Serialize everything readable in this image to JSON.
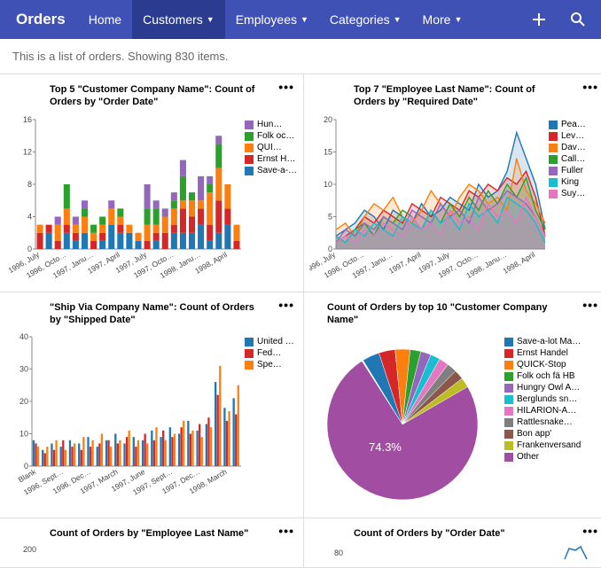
{
  "nav": {
    "brand": "Orders",
    "items": [
      {
        "label": "Home",
        "dropdown": false,
        "active": false
      },
      {
        "label": "Customers",
        "dropdown": true,
        "active": true
      },
      {
        "label": "Employees",
        "dropdown": true,
        "active": false
      },
      {
        "label": "Categories",
        "dropdown": true,
        "active": false
      },
      {
        "label": "More",
        "dropdown": true,
        "active": false
      }
    ]
  },
  "subtitle": "This is a list of orders. Showing 830 items.",
  "colors": {
    "blue": "#1f77b4",
    "red": "#d62728",
    "orange": "#ff7f0e",
    "green": "#2ca02c",
    "purple": "#9467bd",
    "teal": "#17becf",
    "pink": "#e377c2",
    "darkred": "#8c564b",
    "big_purple": "#a14da1",
    "axis": "#888"
  },
  "chart1": {
    "title": "Top 5 \"Customer Company Name\": Count of Orders by \"Order Date\"",
    "ylim": [
      0,
      16
    ],
    "ytick": 4,
    "x_labels": [
      "1996, July",
      "1996, Octo…",
      "1997, Janu…",
      "1997, April",
      "1997, July",
      "1997, Octo…",
      "1998, Janu…",
      "1998, April"
    ],
    "series": [
      {
        "name": "Save-a-lot Mar…",
        "color": "#1f77b4"
      },
      {
        "name": "Ernst Han…",
        "color": "#d62728"
      },
      {
        "name": "QUI…",
        "color": "#ff7f0e"
      },
      {
        "name": "Folk och fä HB",
        "color": "#2ca02c"
      },
      {
        "name": "Hun…",
        "color": "#9467bd"
      }
    ],
    "data": [
      [
        0,
        2,
        1,
        0,
        0
      ],
      [
        2,
        1,
        0,
        0,
        0
      ],
      [
        0,
        1,
        2,
        0,
        1
      ],
      [
        2,
        1,
        2,
        3,
        0
      ],
      [
        1,
        1,
        1,
        0,
        1
      ],
      [
        2,
        0,
        2,
        1,
        1
      ],
      [
        0,
        1,
        1,
        1,
        0
      ],
      [
        1,
        1,
        1,
        1,
        0
      ],
      [
        3,
        0,
        2,
        0,
        1
      ],
      [
        2,
        1,
        1,
        1,
        0
      ],
      [
        2,
        0,
        1,
        0,
        0
      ],
      [
        1,
        0,
        1,
        0,
        0
      ],
      [
        0,
        1,
        2,
        2,
        3
      ],
      [
        1,
        1,
        1,
        2,
        1
      ],
      [
        0,
        2,
        2,
        0,
        1
      ],
      [
        2,
        1,
        2,
        1,
        1
      ],
      [
        2,
        3,
        1,
        3,
        2
      ],
      [
        2,
        2,
        2,
        1,
        0
      ],
      [
        3,
        2,
        1,
        0,
        3
      ],
      [
        1,
        2,
        4,
        1,
        1
      ],
      [
        2,
        4,
        4,
        3,
        1
      ],
      [
        3,
        2,
        3,
        0,
        0
      ],
      [
        0,
        1,
        2,
        0,
        0
      ]
    ]
  },
  "chart2": {
    "title": "Top 7 \"Employee Last Name\": Count of Orders by \"Required Date\"",
    "ylim": [
      0,
      20
    ],
    "ytick": 5,
    "x_labels": [
      "1996, July",
      "1996, Octo…",
      "1997, Janu…",
      "1997, April",
      "1997, July",
      "1997, Octo…",
      "1998, Janu…",
      "1998, April"
    ],
    "series": [
      {
        "name": "Pea…",
        "color": "#1f77b4"
      },
      {
        "name": "Lev…",
        "color": "#d62728"
      },
      {
        "name": "Dav…",
        "color": "#ff7f0e"
      },
      {
        "name": "Call…",
        "color": "#2ca02c"
      },
      {
        "name": "Fuller",
        "color": "#9467bd"
      },
      {
        "name": "King",
        "color": "#17becf"
      },
      {
        "name": "Suy…",
        "color": "#e377c2"
      }
    ],
    "lines": {
      "Pea…": [
        2,
        3,
        4,
        6,
        5,
        3,
        6,
        5,
        4,
        7,
        5,
        6,
        8,
        7,
        6,
        10,
        8,
        9,
        12,
        18,
        14,
        10,
        3
      ],
      "Lev…": [
        1,
        2,
        3,
        5,
        4,
        6,
        5,
        4,
        7,
        6,
        5,
        8,
        7,
        6,
        9,
        8,
        10,
        9,
        11,
        10,
        12,
        8,
        2
      ],
      "Dav…": [
        3,
        4,
        2,
        5,
        7,
        6,
        8,
        5,
        4,
        6,
        9,
        7,
        5,
        8,
        10,
        9,
        7,
        8,
        6,
        14,
        9,
        7,
        4
      ],
      "Call…": [
        2,
        1,
        3,
        4,
        2,
        5,
        4,
        6,
        5,
        3,
        6,
        4,
        7,
        5,
        8,
        6,
        9,
        7,
        10,
        8,
        11,
        6,
        3
      ],
      "Fuller": [
        1,
        3,
        2,
        4,
        3,
        5,
        4,
        3,
        6,
        5,
        4,
        7,
        5,
        6,
        4,
        8,
        6,
        7,
        9,
        8,
        7,
        5,
        2
      ],
      "King": [
        2,
        1,
        3,
        2,
        4,
        3,
        2,
        5,
        4,
        3,
        6,
        4,
        5,
        3,
        7,
        5,
        6,
        4,
        8,
        7,
        6,
        4,
        1
      ],
      "Suy…": [
        1,
        2,
        1,
        3,
        2,
        4,
        3,
        2,
        5,
        3,
        4,
        2,
        6,
        4,
        5,
        3,
        7,
        5,
        6,
        4,
        8,
        5,
        2
      ]
    }
  },
  "chart3": {
    "title": "\"Ship Via Company Name\": Count of Orders by \"Shipped Date\"",
    "ylim": [
      0,
      40
    ],
    "ytick": 10,
    "x_labels": [
      "Blank",
      "1996, Sept…",
      "1996, Dec…",
      "1997, March",
      "1997, June",
      "1997, Sept…",
      "1997, Dec…",
      "1998, March"
    ],
    "series": [
      {
        "name": "United Pac…",
        "color": "#1f77b4"
      },
      {
        "name": "Fed…",
        "color": "#d62728"
      },
      {
        "name": "Spe…",
        "color": "#ff7f0e"
      }
    ],
    "data": [
      [
        8,
        7,
        6
      ],
      [
        5,
        4,
        6
      ],
      [
        7,
        5,
        8
      ],
      [
        6,
        8,
        5
      ],
      [
        8,
        6,
        7
      ],
      [
        7,
        5,
        9
      ],
      [
        9,
        6,
        8
      ],
      [
        6,
        7,
        10
      ],
      [
        8,
        8,
        6
      ],
      [
        10,
        7,
        8
      ],
      [
        7,
        9,
        11
      ],
      [
        9,
        6,
        8
      ],
      [
        8,
        10,
        7
      ],
      [
        11,
        8,
        12
      ],
      [
        9,
        11,
        8
      ],
      [
        12,
        9,
        10
      ],
      [
        10,
        12,
        14
      ],
      [
        14,
        10,
        11
      ],
      [
        11,
        13,
        9
      ],
      [
        13,
        15,
        12
      ],
      [
        26,
        22,
        31
      ],
      [
        18,
        14,
        17
      ],
      [
        21,
        16,
        25
      ]
    ]
  },
  "chart4": {
    "title": "Count of Orders by top 10 \"Customer Company Name\"",
    "label": "74.3%",
    "slices": [
      {
        "name": "Save-a-lot Ma…",
        "color": "#1f77b4",
        "pct": 3.7
      },
      {
        "name": "Ernst Handel",
        "color": "#d62728",
        "pct": 3.5
      },
      {
        "name": "QUICK-Stop",
        "color": "#ff7f0e",
        "pct": 3.2
      },
      {
        "name": "Folk och fä HB",
        "color": "#2ca02c",
        "pct": 2.3
      },
      {
        "name": "Hungry Owl A…",
        "color": "#9467bd",
        "pct": 2.2
      },
      {
        "name": "Berglunds sn…",
        "color": "#17becf",
        "pct": 2.1
      },
      {
        "name": "HILARION-A…",
        "color": "#e377c2",
        "pct": 2.1
      },
      {
        "name": "Rattlesnake…",
        "color": "#7f7f7f",
        "pct": 2.1
      },
      {
        "name": "Bon app'",
        "color": "#8c564b",
        "pct": 2.1
      },
      {
        "name": "Frankenversand",
        "color": "#bcbd22",
        "pct": 2.1
      },
      {
        "name": "Other",
        "color": "#a14da1",
        "pct": 74.3
      }
    ]
  },
  "chart5": {
    "title": "Count of Orders by \"Employee Last Name\"",
    "y_first_tick": "200"
  },
  "chart6": {
    "title": "Count of Orders by \"Order Date\"",
    "y_first_tick": "80"
  }
}
